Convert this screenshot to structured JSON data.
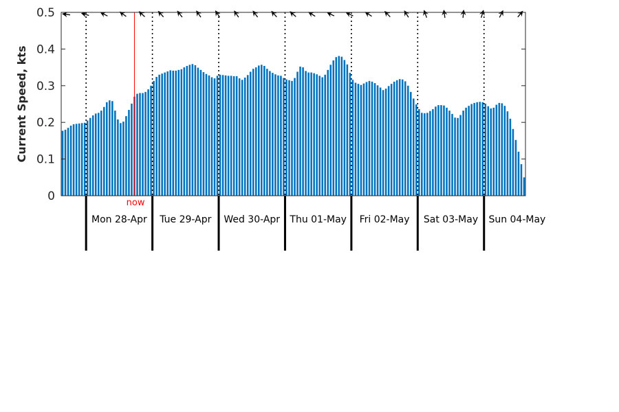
{
  "chart_data": {
    "type": "bar",
    "title": "",
    "xlabel": "",
    "ylabel": "Current Speed, kts",
    "ylim": [
      0,
      0.5
    ],
    "yticks": [
      0,
      0.1,
      0.2,
      0.3,
      0.4,
      0.5
    ],
    "ytick_labels": [
      "0",
      "0.1",
      "0.2",
      "0.3",
      "0.4",
      "0.5"
    ],
    "grid": false,
    "bar_color": "#0072bd",
    "hours_per_bar": 1,
    "start_offset_hours": -9,
    "days": [
      "Mon 28-Apr",
      "Tue 29-Apr",
      "Wed 30-Apr",
      "Thu 01-May",
      "Fri 02-May",
      "Sat 03-May",
      "Sun 04-May"
    ],
    "now_label": "now",
    "now_color": "#ff0000",
    "now_hour": 17.5,
    "values": [
      0.177,
      0.18,
      0.185,
      0.191,
      0.195,
      0.196,
      0.197,
      0.198,
      0.199,
      0.205,
      0.212,
      0.219,
      0.224,
      0.226,
      0.232,
      0.242,
      0.255,
      0.26,
      0.258,
      0.232,
      0.208,
      0.198,
      0.202,
      0.217,
      0.234,
      0.251,
      0.27,
      0.278,
      0.28,
      0.28,
      0.283,
      0.29,
      0.3,
      0.313,
      0.324,
      0.33,
      0.333,
      0.336,
      0.339,
      0.342,
      0.341,
      0.341,
      0.343,
      0.345,
      0.35,
      0.354,
      0.357,
      0.359,
      0.356,
      0.349,
      0.343,
      0.337,
      0.332,
      0.328,
      0.323,
      0.32,
      0.327,
      0.33,
      0.329,
      0.328,
      0.327,
      0.327,
      0.326,
      0.326,
      0.32,
      0.316,
      0.322,
      0.329,
      0.338,
      0.346,
      0.35,
      0.355,
      0.357,
      0.354,
      0.346,
      0.34,
      0.335,
      0.331,
      0.328,
      0.327,
      0.321,
      0.317,
      0.315,
      0.313,
      0.321,
      0.338,
      0.352,
      0.35,
      0.34,
      0.336,
      0.336,
      0.334,
      0.331,
      0.327,
      0.323,
      0.33,
      0.343,
      0.357,
      0.369,
      0.378,
      0.381,
      0.379,
      0.37,
      0.358,
      0.335,
      0.316,
      0.308,
      0.305,
      0.302,
      0.306,
      0.31,
      0.313,
      0.311,
      0.307,
      0.301,
      0.295,
      0.288,
      0.292,
      0.299,
      0.305,
      0.311,
      0.315,
      0.318,
      0.317,
      0.312,
      0.3,
      0.283,
      0.265,
      0.249,
      0.236,
      0.226,
      0.225,
      0.226,
      0.231,
      0.236,
      0.243,
      0.247,
      0.247,
      0.246,
      0.24,
      0.232,
      0.223,
      0.213,
      0.212,
      0.22,
      0.232,
      0.24,
      0.245,
      0.25,
      0.253,
      0.255,
      0.256,
      0.255,
      0.251,
      0.244,
      0.238,
      0.24,
      0.248,
      0.253,
      0.252,
      0.245,
      0.23,
      0.21,
      0.182,
      0.152,
      0.12,
      0.086,
      0.05
    ],
    "direction_arrows_deg": [
      278,
      287,
      297,
      306,
      313,
      318,
      322,
      325,
      327,
      326,
      323,
      318,
      311,
      303,
      296,
      295,
      303,
      315,
      328,
      340,
      352,
      5,
      17,
      27,
      40
    ]
  }
}
